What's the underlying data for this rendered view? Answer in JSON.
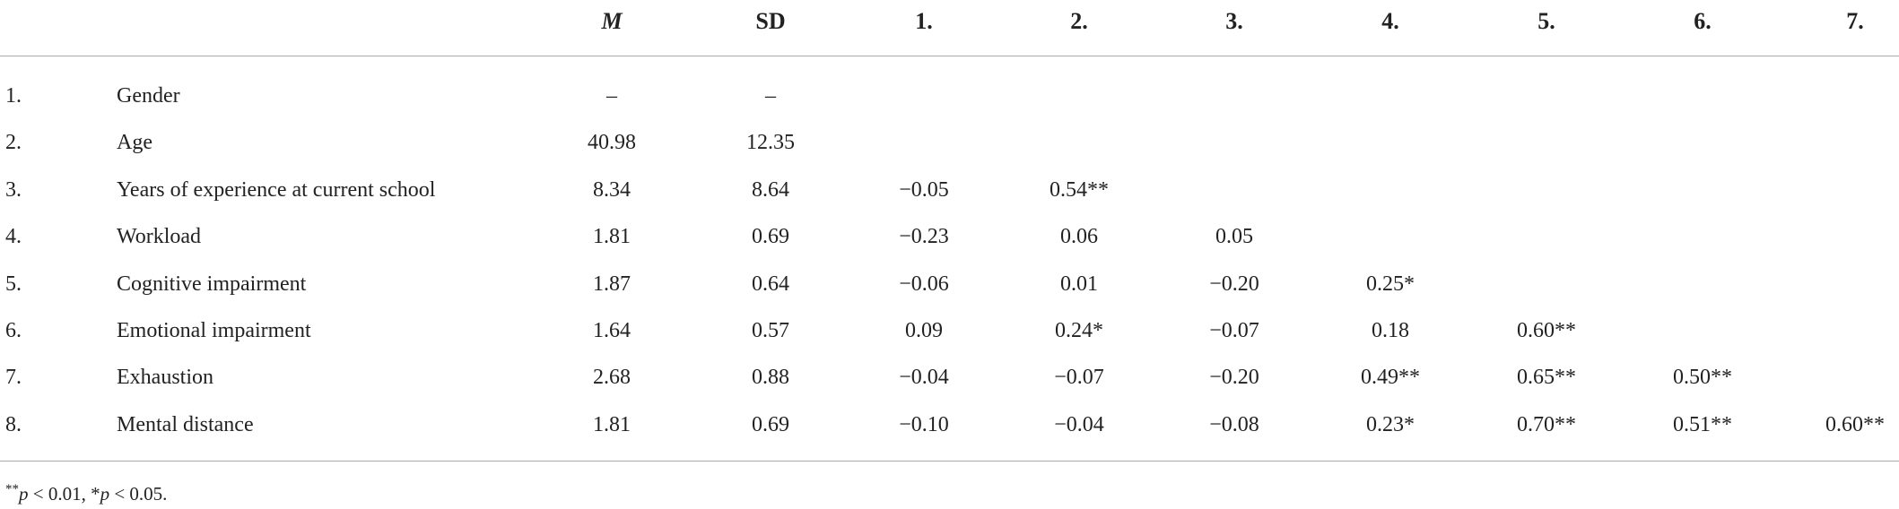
{
  "table": {
    "header": [
      "M",
      "SD",
      "1.",
      "2.",
      "3.",
      "4.",
      "5.",
      "6.",
      "7."
    ],
    "rows": [
      [
        "1.",
        "Gender",
        "–",
        "–"
      ],
      [
        "2.",
        "Age",
        "40.98",
        "12.35"
      ],
      [
        "3.",
        "Years of experience at current school",
        "8.34",
        "8.64",
        "−0.05",
        "0.54**"
      ],
      [
        "4.",
        "Workload",
        "1.81",
        "0.69",
        "−0.23",
        "0.06",
        "0.05"
      ],
      [
        "5.",
        "Cognitive impairment",
        "1.87",
        "0.64",
        "−0.06",
        "0.01",
        "−0.20",
        "0.25*"
      ],
      [
        "6.",
        "Emotional impairment",
        "1.64",
        "0.57",
        "0.09",
        "0.24*",
        "−0.07",
        "0.18",
        "0.60**"
      ],
      [
        "7.",
        "Exhaustion",
        "2.68",
        "0.88",
        "−0.04",
        "−0.07",
        "−0.20",
        "0.49**",
        "0.65**",
        "0.50**"
      ],
      [
        "8.",
        "Mental distance",
        "1.81",
        "0.69",
        "−0.10",
        "−0.04",
        "−0.08",
        "0.23*",
        "0.70**",
        "0.51**",
        "0.60**"
      ]
    ],
    "footnote": [
      "**",
      "p",
      " < 0.01, *",
      "p",
      " < 0.05."
    ]
  }
}
